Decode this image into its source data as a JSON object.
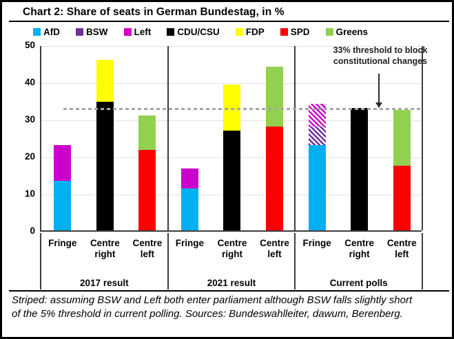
{
  "chart_data": {
    "type": "bar",
    "stacked": true,
    "title": "Chart 2: Share of seats in German Bundestag, in %",
    "unit": "%",
    "ylim": [
      0,
      50
    ],
    "yticks": [
      0,
      10,
      20,
      30,
      40,
      50
    ],
    "grid": "horizontal",
    "legend_position": "top",
    "parties": [
      {
        "name": "AfD",
        "color": "#00B0F0"
      },
      {
        "name": "BSW",
        "color": "#7030A0"
      },
      {
        "name": "Left",
        "color": "#CC00CC"
      },
      {
        "name": "CDU/CSU",
        "color": "#000000"
      },
      {
        "name": "FDP",
        "color": "#FFFF00"
      },
      {
        "name": "SPD",
        "color": "#FF0000"
      },
      {
        "name": "Greens",
        "color": "#92D050"
      }
    ],
    "threshold_line": {
      "value": 33,
      "style": "dashed",
      "color": "#A6A6A6",
      "annotation": "33% threshold to block constitutional changes"
    },
    "groups": [
      {
        "label": "2017 result",
        "bars": [
          {
            "label": "Fringe",
            "segments": [
              {
                "party": "AfD",
                "value": 13.3
              },
              {
                "party": "Left",
                "value": 9.7
              }
            ]
          },
          {
            "label": "Centre right",
            "segments": [
              {
                "party": "CDU/CSU",
                "value": 34.7
              },
              {
                "party": "FDP",
                "value": 11.3
              }
            ]
          },
          {
            "label": "Centre left",
            "segments": [
              {
                "party": "SPD",
                "value": 21.6
              },
              {
                "party": "Greens",
                "value": 9.4
              }
            ]
          }
        ]
      },
      {
        "label": "2021 result",
        "bars": [
          {
            "label": "Fringe",
            "segments": [
              {
                "party": "AfD",
                "value": 11.3
              },
              {
                "party": "Left",
                "value": 5.3
              }
            ]
          },
          {
            "label": "Centre right",
            "segments": [
              {
                "party": "CDU/CSU",
                "value": 26.8
              },
              {
                "party": "FDP",
                "value": 12.5
              }
            ]
          },
          {
            "label": "Centre left",
            "segments": [
              {
                "party": "SPD",
                "value": 28.0
              },
              {
                "party": "Greens",
                "value": 16.0
              }
            ]
          }
        ]
      },
      {
        "label": "Current polls",
        "bars": [
          {
            "label": "Fringe",
            "segments": [
              {
                "party": "AfD",
                "value": 23.0
              },
              {
                "party": "BSW",
                "value": 5.0,
                "striped": true
              },
              {
                "party": "Left",
                "value": 6.0,
                "striped": true
              }
            ]
          },
          {
            "label": "Centre right",
            "segments": [
              {
                "party": "CDU/CSU",
                "value": 33.0
              }
            ]
          },
          {
            "label": "Centre left",
            "segments": [
              {
                "party": "SPD",
                "value": 17.5
              },
              {
                "party": "Greens",
                "value": 15.0
              }
            ]
          }
        ]
      }
    ],
    "footnote": "Striped: assuming BSW and Left both enter parliament although BSW falls slightly short of the 5% threshold in current polling. Sources: Bundeswahlleiter, dawum, Berenberg."
  },
  "style_colors": {
    "gridline": "#E2E2E2",
    "axis": "#3D3D3D",
    "threshold": "#A6A6A6"
  }
}
